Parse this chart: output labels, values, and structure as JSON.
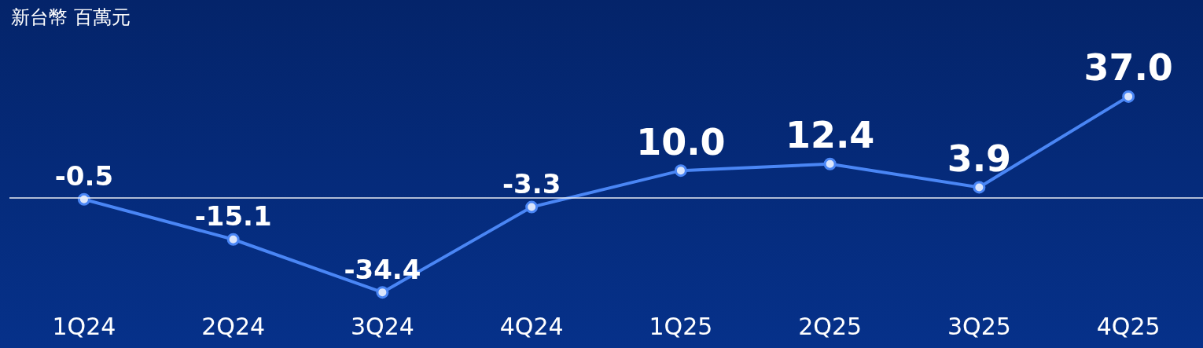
{
  "chart_data": {
    "type": "line",
    "ylabel": "新台幣 百萬元",
    "categories": [
      "1Q24",
      "2Q24",
      "3Q24",
      "4Q24",
      "1Q25",
      "2Q25",
      "3Q25",
      "4Q25"
    ],
    "series": [
      {
        "color": "#4a86f5",
        "values": [
          -0.5,
          -15.1,
          -34.4,
          -3.3,
          10.0,
          12.4,
          3.9,
          37.0
        ],
        "value_labels": [
          "-0.5",
          "-15.1",
          "-34.4",
          "-3.3",
          "10.0",
          "12.4",
          "3.9",
          "37.0"
        ]
      }
    ],
    "ref_lines": [
      {
        "axis": "y",
        "value": 0,
        "color": "#e8ecf5"
      }
    ],
    "marker": "circle",
    "line_style": "solid",
    "grid": false
  }
}
